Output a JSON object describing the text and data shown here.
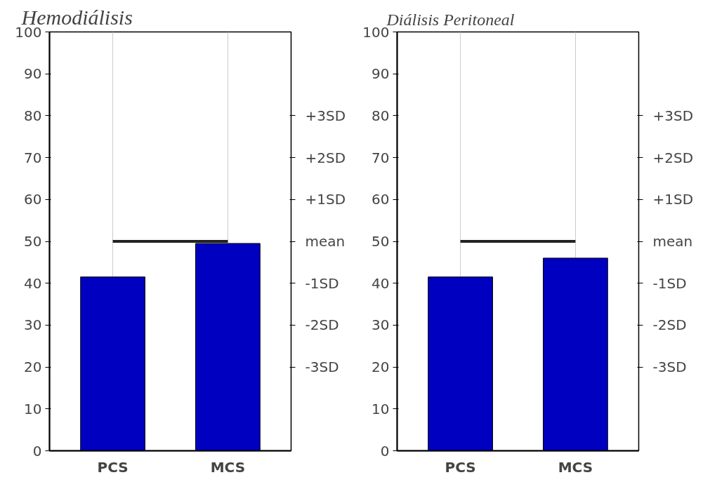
{
  "chart_data": [
    {
      "type": "bar",
      "title": "Hemodiálisis",
      "categories": [
        "PCS",
        "MCS"
      ],
      "values": [
        41.5,
        49.5
      ],
      "color": "#0000c0",
      "ylim": [
        0,
        100
      ],
      "yticks": [
        0,
        10,
        20,
        30,
        40,
        50,
        60,
        70,
        80,
        90,
        100
      ],
      "ref_lines": [
        {
          "axis": "y",
          "value": 50,
          "label": "mean",
          "color": "#222222"
        }
      ],
      "annotations": [
        "+3SD",
        "+2SD",
        "+1SD",
        "-1SD",
        "-2SD",
        "-3SD"
      ],
      "grid": "x"
    },
    {
      "type": "bar",
      "title": "Diálisis Peritoneal",
      "categories": [
        "PCS",
        "MCS"
      ],
      "values": [
        41.5,
        46
      ],
      "color": "#0000c0",
      "ylim": [
        0,
        100
      ],
      "yticks": [
        0,
        10,
        20,
        30,
        40,
        50,
        60,
        70,
        80,
        90,
        100
      ],
      "ref_lines": [
        {
          "axis": "y",
          "value": 50,
          "label": "mean",
          "color": "#222222"
        }
      ],
      "annotations": [
        "+3SD",
        "+2SD",
        "+1SD",
        "-1SD",
        "-2SD",
        "-3SD"
      ],
      "grid": "x"
    }
  ]
}
